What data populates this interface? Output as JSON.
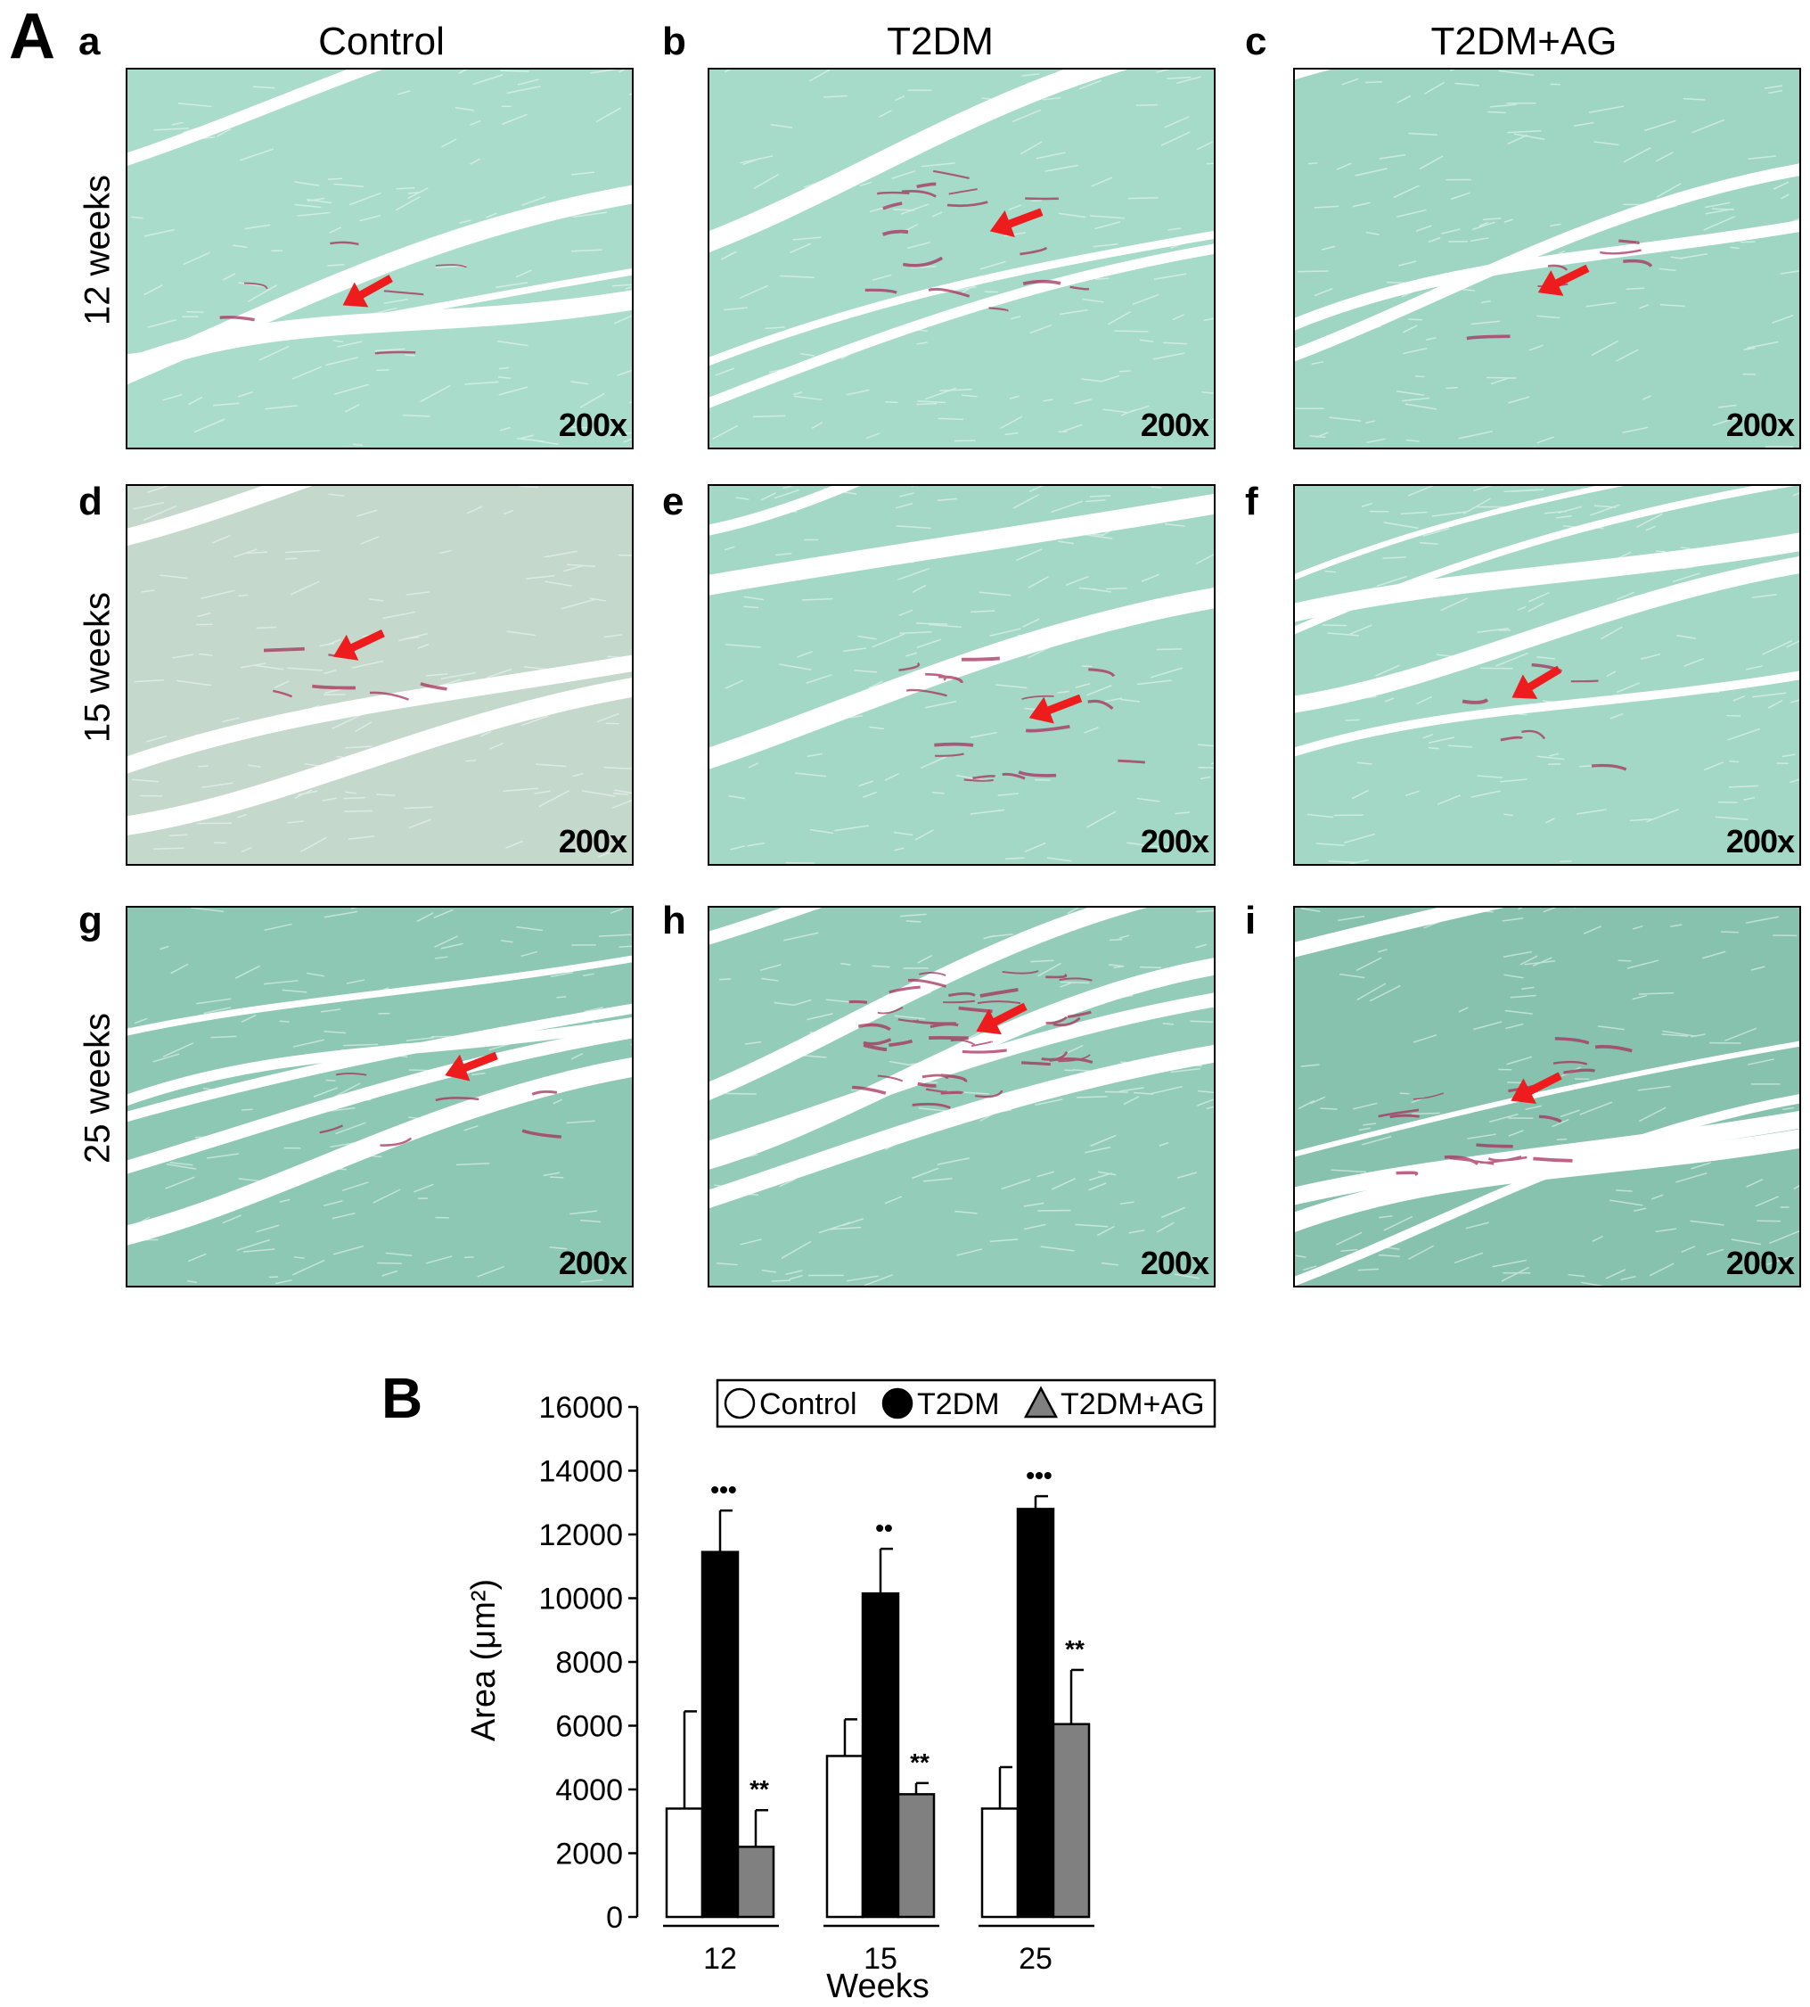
{
  "panel_a_label": "A",
  "panel_b_label": "B",
  "columns": [
    "Control",
    "T2DM",
    "T2DM+AG"
  ],
  "rows": [
    "12 weeks",
    "15 weeks",
    "25 weeks"
  ],
  "micrographs": [
    {
      "letter": "a",
      "magnification": "200x",
      "tint": "#a9dccb",
      "collagen": "light"
    },
    {
      "letter": "b",
      "magnification": "200x",
      "tint": "#a6dac9",
      "collagen": "moderate"
    },
    {
      "letter": "c",
      "magnification": "200x",
      "tint": "#9fd6c3",
      "collagen": "light"
    },
    {
      "letter": "d",
      "magnification": "200x",
      "tint": "#c4d8cc",
      "collagen": "light"
    },
    {
      "letter": "e",
      "magnification": "200x",
      "tint": "#a3d8c6",
      "collagen": "moderate"
    },
    {
      "letter": "f",
      "magnification": "200x",
      "tint": "#a2d8c5",
      "collagen": "light"
    },
    {
      "letter": "g",
      "magnification": "200x",
      "tint": "#8cc8b3",
      "collagen": "light"
    },
    {
      "letter": "h",
      "magnification": "200x",
      "tint": "#93cdb9",
      "collagen": "heavy"
    },
    {
      "letter": "i",
      "magnification": "200x",
      "tint": "#86c2ae",
      "collagen": "moderate"
    }
  ],
  "colors": {
    "tissue_edge": "#ffffff",
    "collagen": "#a8305a",
    "arrow": "#ee1c1c",
    "control_bar": "#ffffff",
    "t2dm_bar": "#000000",
    "ag_bar": "#808080"
  },
  "chart_data": {
    "type": "bar",
    "categories": [
      "12",
      "15",
      "25"
    ],
    "xlabel": "Weeks",
    "ylabel": "Area (μm²)",
    "ylim": [
      0,
      16000
    ],
    "yticks": [
      "0",
      "2000",
      "4000",
      "6000",
      "8000",
      "10000",
      "12000",
      "14000",
      "16000"
    ],
    "legend": [
      "Control",
      "T2DM",
      "T2DM+AG"
    ],
    "legend_placement": "top-right",
    "series": [
      {
        "name": "Control",
        "values": [
          3400,
          5050,
          3400
        ],
        "errors": [
          3050,
          1150,
          1300
        ],
        "marks": [
          "",
          "",
          ""
        ]
      },
      {
        "name": "T2DM",
        "values": [
          11450,
          10150,
          12800
        ],
        "errors": [
          1300,
          1400,
          400
        ],
        "marks": [
          "•••",
          "••",
          "•••"
        ]
      },
      {
        "name": "T2DM+AG",
        "values": [
          2200,
          3850,
          6050
        ],
        "errors": [
          1150,
          350,
          1700
        ],
        "marks": [
          "**",
          "**",
          "**"
        ]
      }
    ]
  }
}
